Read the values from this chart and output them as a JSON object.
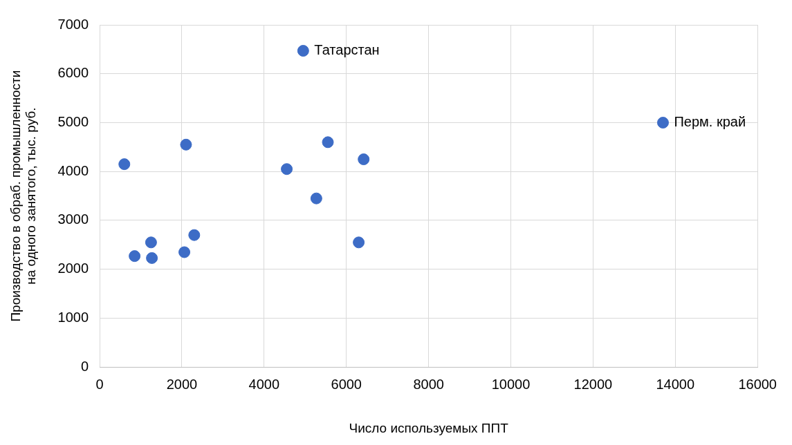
{
  "chart_data": {
    "type": "scatter",
    "xlabel": "Число используемых ППТ",
    "ylabel": "Производство в обраб. промышленности на одного занятого, тыс. руб.",
    "x": [
      600,
      850,
      1250,
      1270,
      2060,
      2100,
      2300,
      4550,
      4950,
      5270,
      5550,
      6300,
      6420,
      13700
    ],
    "series": [
      {
        "color": "#3d6cc6",
        "values": [
          4150,
          2270,
          2550,
          2230,
          2350,
          4550,
          2700,
          4050,
          6470,
          3450,
          4600,
          2550,
          4250,
          5000
        ]
      }
    ],
    "xlim": [
      0,
      16000
    ],
    "xticks": [
      0,
      2000,
      4000,
      6000,
      8000,
      10000,
      12000,
      14000,
      16000
    ],
    "ylim": [
      0,
      7000
    ],
    "yticks": [
      0,
      1000,
      2000,
      3000,
      4000,
      5000,
      6000,
      7000
    ],
    "grid": true,
    "legend": false,
    "marker": "circle",
    "annotations": [
      {
        "text": "Татарстан",
        "x": 4950,
        "y": 6470
      },
      {
        "text": "Перм. край",
        "x": 13700,
        "y": 5000
      }
    ]
  }
}
